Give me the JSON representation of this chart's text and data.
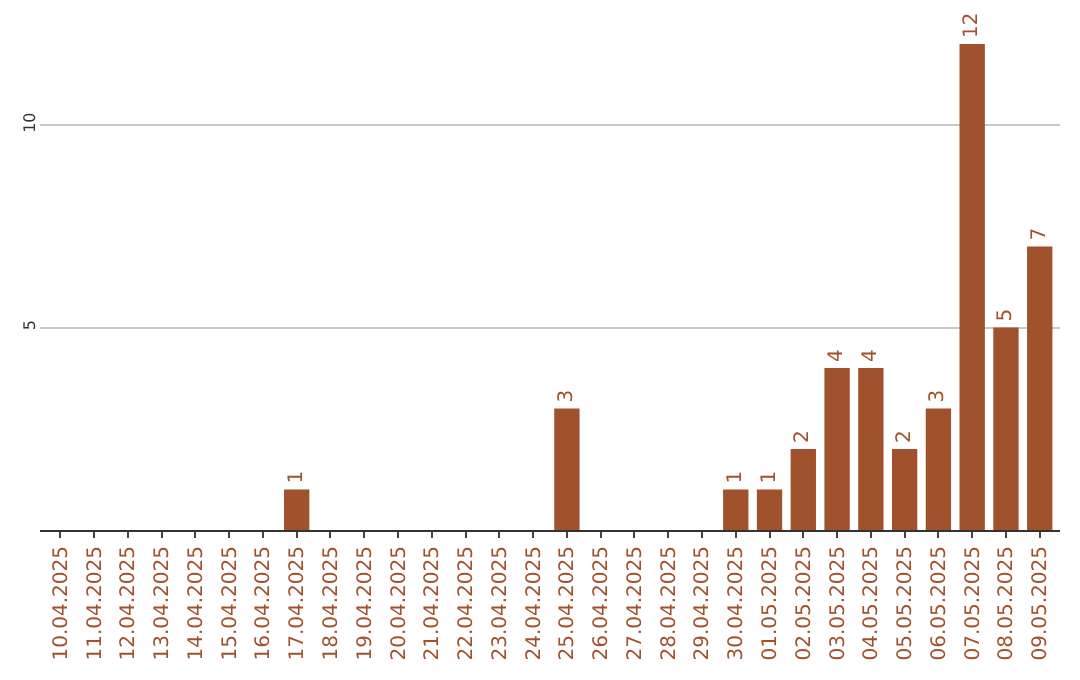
{
  "chart_data": {
    "type": "bar",
    "categories": [
      "10.04.2025",
      "11.04.2025",
      "12.04.2025",
      "13.04.2025",
      "14.04.2025",
      "15.04.2025",
      "16.04.2025",
      "17.04.2025",
      "18.04.2025",
      "19.04.2025",
      "20.04.2025",
      "21.04.2025",
      "22.04.2025",
      "23.04.2025",
      "24.04.2025",
      "25.04.2025",
      "26.04.2025",
      "27.04.2025",
      "28.04.2025",
      "29.04.2025",
      "30.04.2025",
      "01.05.2025",
      "02.05.2025",
      "03.05.2025",
      "04.05.2025",
      "05.05.2025",
      "06.05.2025",
      "07.05.2025",
      "08.05.2025",
      "09.05.2025"
    ],
    "values": [
      0,
      0,
      0,
      0,
      0,
      0,
      0,
      1,
      0,
      0,
      0,
      0,
      0,
      0,
      0,
      3,
      0,
      0,
      0,
      0,
      1,
      1,
      2,
      4,
      4,
      2,
      3,
      12,
      5,
      7
    ],
    "value_labels": [
      null,
      null,
      null,
      null,
      null,
      null,
      null,
      "1",
      null,
      null,
      null,
      null,
      null,
      null,
      null,
      "3",
      null,
      null,
      null,
      null,
      "1",
      "1",
      "2",
      "4",
      "4",
      "2",
      "3",
      "12",
      "5",
      "7"
    ],
    "color": "#a0522d",
    "ylim": [
      0,
      12
    ],
    "yticks": [
      5,
      10
    ],
    "grid": "y"
  }
}
